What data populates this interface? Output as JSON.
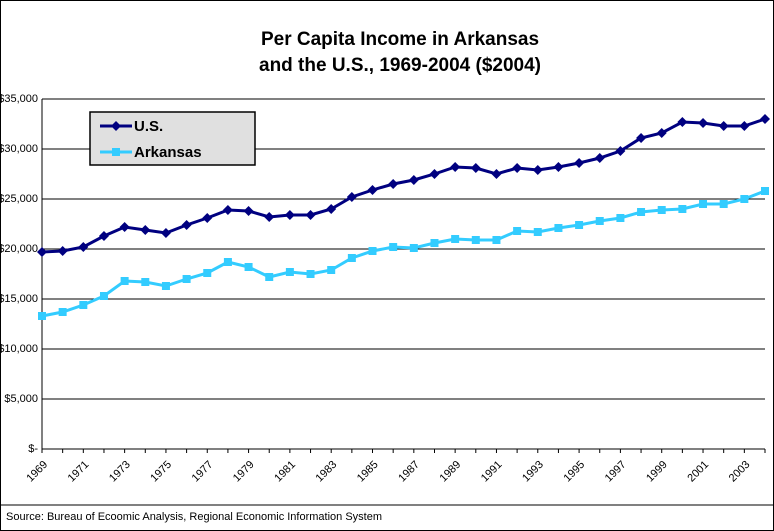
{
  "chart_data": {
    "type": "line",
    "title": [
      "Per Capita Income in Arkansas",
      "and the U.S., 1969-2004 ($2004)"
    ],
    "categories": [
      "1969",
      null,
      "1971",
      null,
      "1973",
      null,
      "1975",
      null,
      "1977",
      null,
      "1979",
      null,
      "1981",
      null,
      "1983",
      null,
      "1985",
      null,
      "1987",
      null,
      "1989",
      null,
      "1991",
      null,
      "1993",
      null,
      "1995",
      null,
      "1997",
      null,
      "1999",
      null,
      "2001",
      null,
      "2003",
      null
    ],
    "series": [
      {
        "name": "U.S.",
        "color": "#000080",
        "marker": "diamond",
        "values": [
          19700,
          19800,
          20200,
          21300,
          22200,
          21900,
          21600,
          22400,
          23100,
          23900,
          23800,
          23200,
          23400,
          23400,
          24000,
          25200,
          25900,
          26500,
          26900,
          27500,
          28200,
          28100,
          27500,
          28100,
          27900,
          28200,
          28600,
          29100,
          29800,
          31100,
          31600,
          32700,
          32600,
          32300,
          32300,
          33000
        ]
      },
      {
        "name": "Arkansas",
        "color": "#33ccff",
        "marker": "square",
        "values": [
          13300,
          13700,
          14400,
          15300,
          16800,
          16700,
          16300,
          17000,
          17600,
          18700,
          18200,
          17200,
          17700,
          17500,
          17900,
          19100,
          19800,
          20200,
          20100,
          20600,
          21000,
          20900,
          20900,
          21800,
          21700,
          22100,
          22400,
          22800,
          23100,
          23700,
          23900,
          24000,
          24500,
          24500,
          25000,
          25800
        ]
      }
    ],
    "ylim": [
      0,
      35000
    ],
    "yticks": [
      {
        "value": 0,
        "label": "$-"
      },
      {
        "value": 5000,
        "label": "$5,000"
      },
      {
        "value": 10000,
        "label": "$10,000"
      },
      {
        "value": 15000,
        "label": "$15,000"
      },
      {
        "value": 20000,
        "label": "$20,000"
      },
      {
        "value": 25000,
        "label": "$25,000"
      },
      {
        "value": 30000,
        "label": "$30,000"
      },
      {
        "value": 35000,
        "label": "$35,000"
      }
    ],
    "grid": true,
    "legend": "top-left",
    "source": "Source: Bureau of Ecoomic Analysis, Regional Economic Information System"
  }
}
